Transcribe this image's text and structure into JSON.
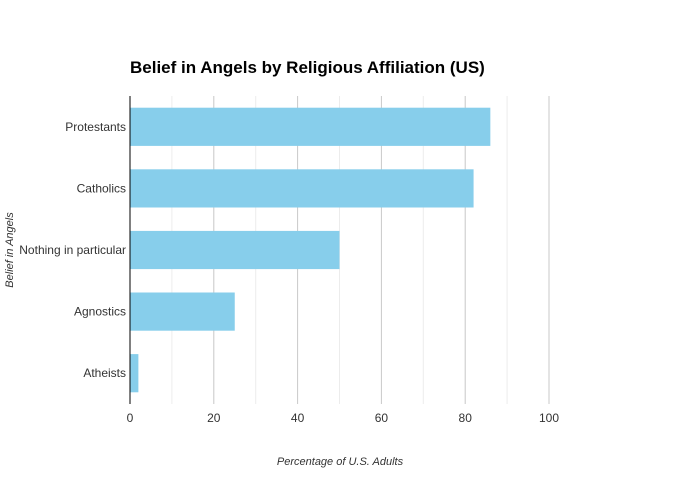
{
  "chart_data": {
    "type": "bar",
    "orientation": "horizontal",
    "title": "Belief in Angels by Religious Affiliation (US)",
    "xlabel": "Percentage of U.S. Adults",
    "ylabel": "Belief in Angels",
    "categories": [
      "Protestants",
      "Catholics",
      "Nothing in particular",
      "Agnostics",
      "Atheists"
    ],
    "values": [
      86,
      82,
      50,
      25,
      2
    ],
    "xlim": [
      0,
      100
    ],
    "xticks": [
      0,
      20,
      40,
      60,
      80,
      100
    ],
    "grid": true,
    "bar_color": "#87CEEB"
  }
}
